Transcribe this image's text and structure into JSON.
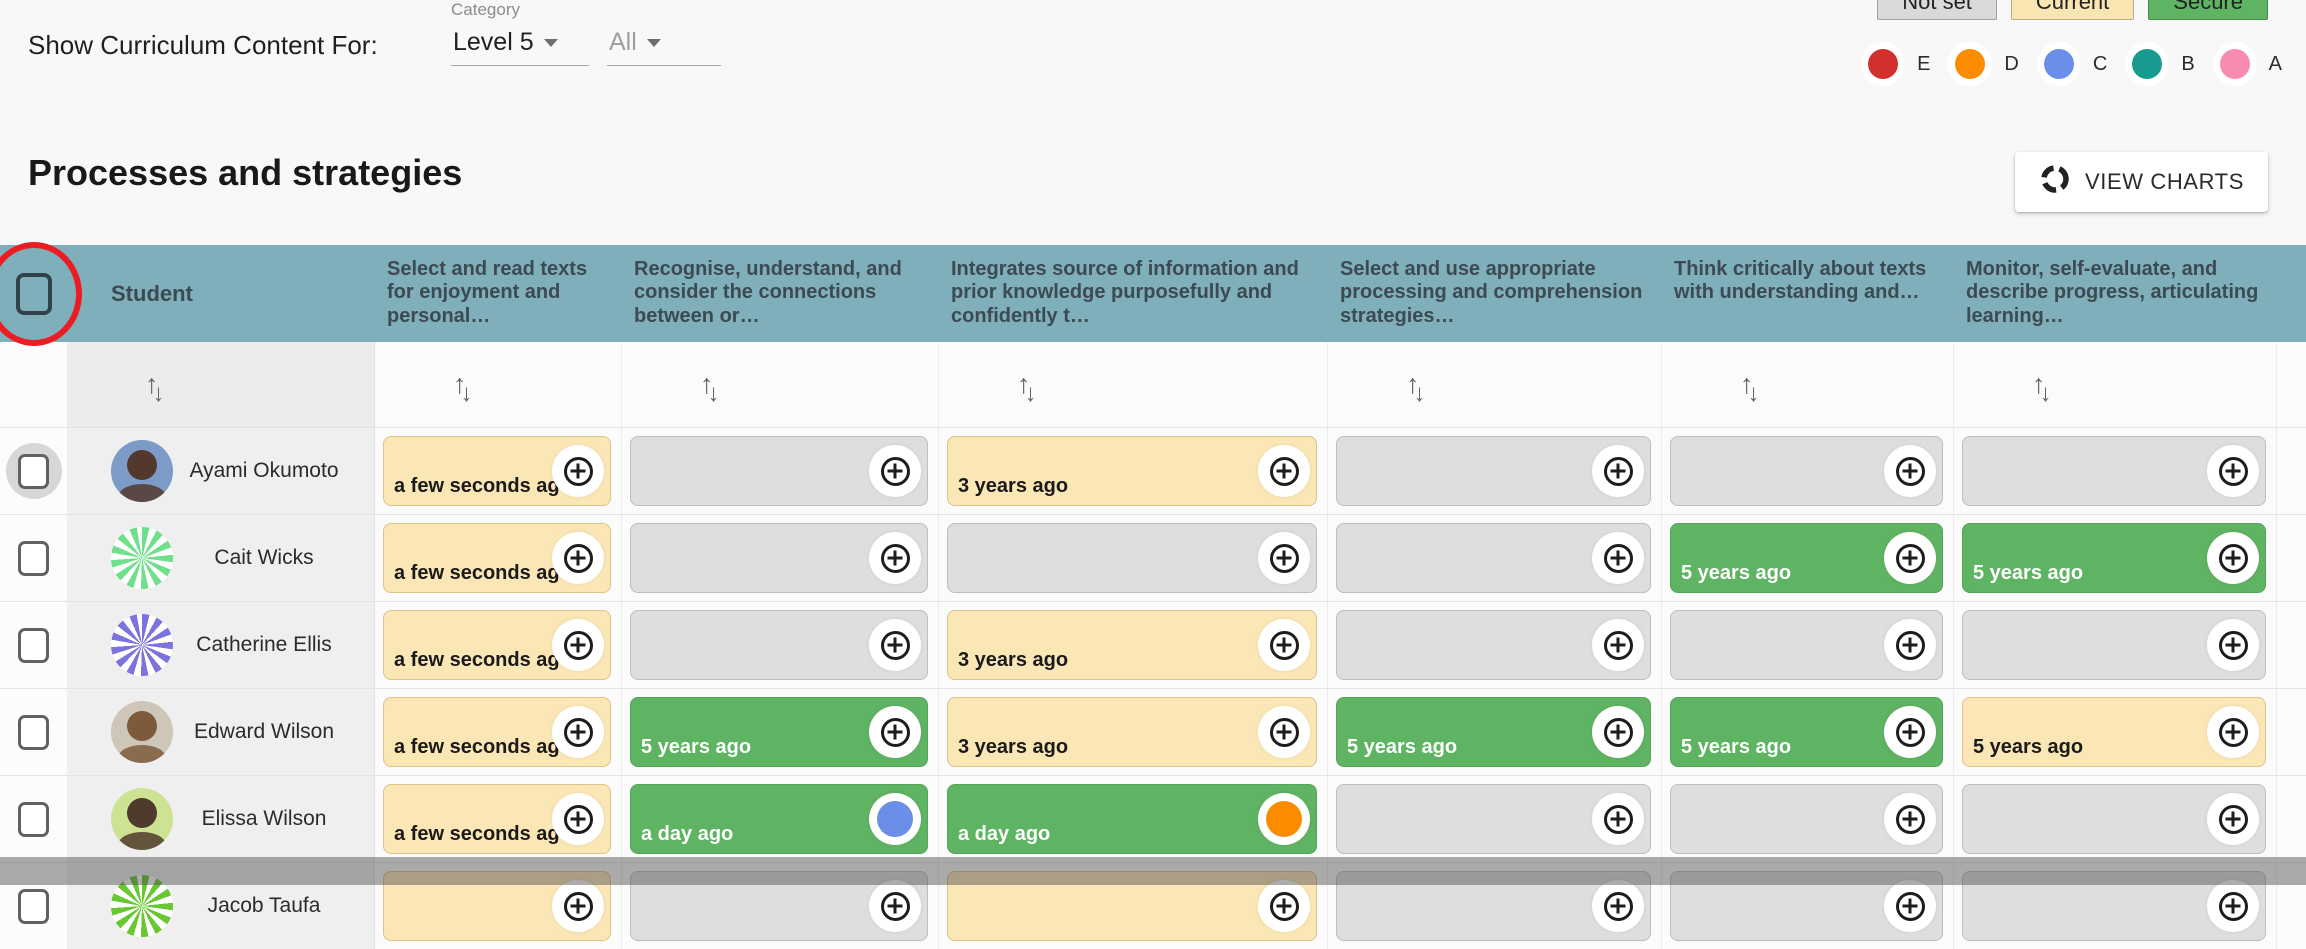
{
  "topbar": {
    "show_label": "Show Curriculum Content For:",
    "category_label": "Category",
    "level_value": "Level 5",
    "all_value": "All"
  },
  "status_chips": [
    {
      "label": "Not set",
      "bg": "#d9d9d9"
    },
    {
      "label": "Current",
      "bg": "#f8e5b2"
    },
    {
      "label": "Secure",
      "bg": "#5fb463"
    }
  ],
  "levels": [
    {
      "letter": "E",
      "color": "#d22f2f"
    },
    {
      "letter": "D",
      "color": "#fb8c00"
    },
    {
      "letter": "C",
      "color": "#6b8fe8"
    },
    {
      "letter": "B",
      "color": "#189b8e"
    },
    {
      "letter": "A",
      "color": "#f78bb0"
    }
  ],
  "section": {
    "title": "Processes and strategies",
    "view_charts_label": "VIEW CHARTS"
  },
  "table": {
    "student_header": "Student",
    "columns": [
      "Select and read texts for enjoyment and personal…",
      "Recognise, understand, and consider the connections between or…",
      "Integrates source of information and prior knowledge purposefully and confidently t…",
      "Select and use appropriate processing and comprehension strategies…",
      "Think critically about texts with understanding and…",
      "Monitor, self-evaluate, and describe progress, articulating learning…"
    ],
    "students": [
      {
        "name": "Ayami Okumoto",
        "avatar": {
          "type": "photo",
          "bg": "#7d9bc7",
          "fg": "#53392d"
        },
        "selected_halo": true,
        "cells": [
          {
            "status": "current",
            "label": "a few seconds ago",
            "action": "plus"
          },
          {
            "status": "notset",
            "label": "",
            "action": "plus"
          },
          {
            "status": "current",
            "label": "3 years ago",
            "action": "plus"
          },
          {
            "status": "notset",
            "label": "",
            "action": "plus"
          },
          {
            "status": "notset",
            "label": "",
            "action": "plus"
          },
          {
            "status": "notset",
            "label": "",
            "action": "plus"
          }
        ]
      },
      {
        "name": "Cait Wicks",
        "avatar": {
          "type": "pattern",
          "bg": "#6fdf8b"
        },
        "cells": [
          {
            "status": "current",
            "label": "a few seconds ago",
            "action": "plus"
          },
          {
            "status": "notset",
            "label": "",
            "action": "plus"
          },
          {
            "status": "notset",
            "label": "",
            "action": "plus"
          },
          {
            "status": "notset",
            "label": "",
            "action": "plus"
          },
          {
            "status": "secure",
            "label": "5 years ago",
            "action": "plus"
          },
          {
            "status": "secure",
            "label": "5 years ago",
            "action": "plus"
          }
        ]
      },
      {
        "name": "Catherine Ellis",
        "avatar": {
          "type": "pattern",
          "bg": "#7b74dd"
        },
        "cells": [
          {
            "status": "current",
            "label": "a few seconds ago",
            "action": "plus"
          },
          {
            "status": "notset",
            "label": "",
            "action": "plus"
          },
          {
            "status": "current",
            "label": "3 years ago",
            "action": "plus"
          },
          {
            "status": "notset",
            "label": "",
            "action": "plus"
          },
          {
            "status": "notset",
            "label": "",
            "action": "plus"
          },
          {
            "status": "notset",
            "label": "",
            "action": "plus"
          }
        ]
      },
      {
        "name": "Edward Wilson",
        "avatar": {
          "type": "photo",
          "bg": "#cfc6ba",
          "fg": "#7d5a3c"
        },
        "cells": [
          {
            "status": "current",
            "label": "a few seconds ago",
            "action": "plus"
          },
          {
            "status": "secure",
            "label": "5 years ago",
            "action": "plus"
          },
          {
            "status": "current",
            "label": "3 years ago",
            "action": "plus"
          },
          {
            "status": "secure",
            "label": "5 years ago",
            "action": "plus"
          },
          {
            "status": "secure",
            "label": "5 years ago",
            "action": "plus"
          },
          {
            "status": "current",
            "label": "5 years ago",
            "action": "plus"
          }
        ]
      },
      {
        "name": "Elissa Wilson",
        "avatar": {
          "type": "photo",
          "bg": "#cde293",
          "fg": "#4f3b2e"
        },
        "cells": [
          {
            "status": "current",
            "label": "a few seconds ago",
            "action": "plus"
          },
          {
            "status": "secure",
            "label": "a day ago",
            "action": "dot",
            "dot_color": "#6b8fe8"
          },
          {
            "status": "secure",
            "label": "a day ago",
            "action": "dot",
            "dot_color": "#fb8c00"
          },
          {
            "status": "notset",
            "label": "",
            "action": "plus"
          },
          {
            "status": "notset",
            "label": "",
            "action": "plus"
          },
          {
            "status": "notset",
            "label": "",
            "action": "plus"
          }
        ]
      },
      {
        "name": "Jacob Taufa",
        "avatar": {
          "type": "pattern",
          "bg": "#67c832"
        },
        "partial": true,
        "cells": [
          {
            "status": "current",
            "label": "",
            "action": "plus"
          },
          {
            "status": "notset",
            "label": "",
            "action": "plus"
          },
          {
            "status": "current",
            "label": "",
            "action": "plus"
          },
          {
            "status": "notset",
            "label": "",
            "action": "plus"
          },
          {
            "status": "notset",
            "label": "",
            "action": "plus"
          },
          {
            "status": "notset",
            "label": "",
            "action": "plus"
          }
        ]
      }
    ]
  }
}
